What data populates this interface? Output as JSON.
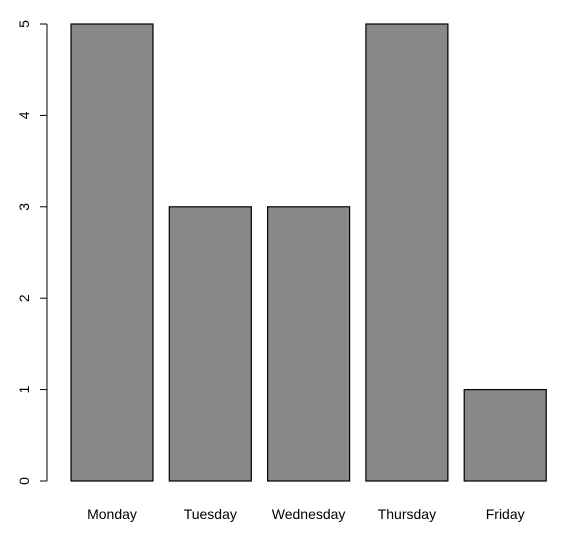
{
  "chart_data": {
    "type": "bar",
    "categories": [
      "Monday",
      "Tuesday",
      "Wednesday",
      "Thursday",
      "Friday"
    ],
    "values": [
      5,
      3,
      3,
      5,
      1
    ],
    "title": "",
    "xlabel": "",
    "ylabel": "",
    "ylim": [
      0,
      5
    ],
    "yticks": [
      0,
      1,
      2,
      3,
      4,
      5
    ],
    "ytick_labels": [
      "0",
      "1",
      "2",
      "3",
      "4",
      "5"
    ],
    "grid": false,
    "legend": "none",
    "colors": {
      "bar_fill": "#888888",
      "bar_stroke": "#000000",
      "axis": "#000000",
      "background": "#ffffff"
    }
  }
}
